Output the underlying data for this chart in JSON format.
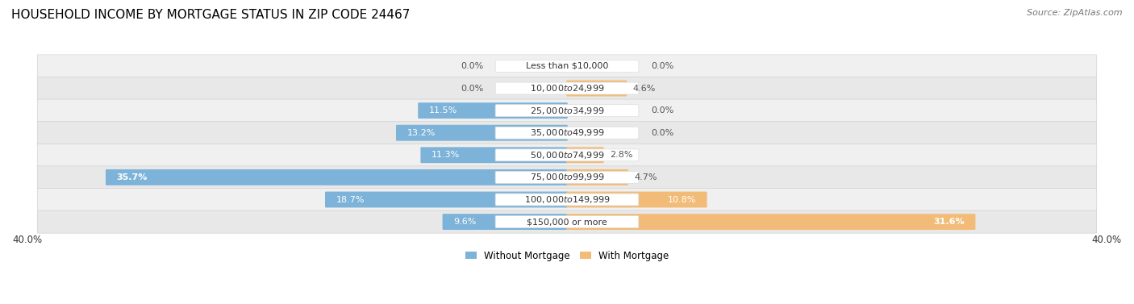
{
  "title": "HOUSEHOLD INCOME BY MORTGAGE STATUS IN ZIP CODE 24467",
  "source": "Source: ZipAtlas.com",
  "categories": [
    "Less than $10,000",
    "$10,000 to $24,999",
    "$25,000 to $34,999",
    "$35,000 to $49,999",
    "$50,000 to $74,999",
    "$75,000 to $99,999",
    "$100,000 to $149,999",
    "$150,000 or more"
  ],
  "without_mortgage": [
    0.0,
    0.0,
    11.5,
    13.2,
    11.3,
    35.7,
    18.7,
    9.6
  ],
  "with_mortgage": [
    0.0,
    4.6,
    0.0,
    0.0,
    2.8,
    4.7,
    10.8,
    31.6
  ],
  "color_without": "#7db3d8",
  "color_with": "#f2bc78",
  "axis_limit": 40.0,
  "legend_label_without": "Without Mortgage",
  "legend_label_with": "With Mortgage",
  "title_fontsize": 11,
  "source_fontsize": 8,
  "label_fontsize": 8,
  "category_fontsize": 8,
  "axis_label_fontsize": 8.5
}
